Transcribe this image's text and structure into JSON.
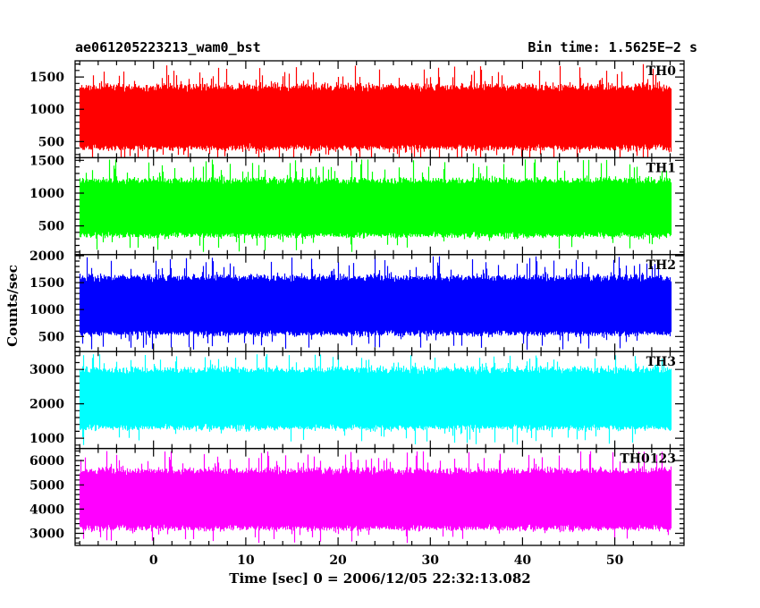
{
  "header": {
    "title": "ae061205223213_wam0_bst",
    "bin_time": "Bin time: 1.5625E−2 s"
  },
  "axes": {
    "xlabel": "Time [sec] 0 = 2006/12/05 22:32:13.082",
    "ylabel": "Counts/sec"
  },
  "chart_data": {
    "type": "line",
    "title": "ae061205223213_wam0_bst",
    "subtitle": "Bin time: 1.5625E−2 s",
    "xlabel": "Time [sec] 0 = 2006/12/05 22:32:13.082",
    "ylabel": "Counts/sec",
    "xlim": [
      -8.5,
      57.5
    ],
    "xdata_range": [
      -8,
      56
    ],
    "xticks_major": [
      0,
      10,
      20,
      30,
      40,
      50
    ],
    "xtick_minor_step": 2,
    "grid": false,
    "legend": "none",
    "panels": [
      {
        "name": "TH0",
        "color": "#ff0000",
        "ylim": [
          250,
          1750
        ],
        "yticks": [
          500,
          1000,
          1500
        ],
        "ytick_minor_step": 100,
        "typical_range": [
          400,
          1350
        ],
        "peak_range": [
          200,
          1700
        ],
        "mean": 880
      },
      {
        "name": "TH1",
        "color": "#00ff00",
        "ylim": [
          60,
          1540
        ],
        "yticks": [
          500,
          1000,
          1500
        ],
        "ytick_minor_step": 100,
        "typical_range": [
          350,
          1200
        ],
        "peak_range": [
          100,
          1520
        ],
        "mean": 750
      },
      {
        "name": "TH2",
        "color": "#0000ff",
        "ylim": [
          220,
          2020
        ],
        "yticks": [
          500,
          1000,
          1500,
          2000
        ],
        "ytick_minor_step": 100,
        "typical_range": [
          550,
          1600
        ],
        "peak_range": [
          250,
          2000
        ],
        "mean": 1050
      },
      {
        "name": "TH3",
        "color": "#00ffff",
        "ylim": [
          700,
          3520
        ],
        "yticks": [
          1000,
          2000,
          3000
        ],
        "ytick_minor_step": 200,
        "typical_range": [
          1300,
          3000
        ],
        "peak_range": [
          800,
          3450
        ],
        "mean": 2100
      },
      {
        "name": "TH0123",
        "color": "#ff00ff",
        "ylim": [
          2500,
          6500
        ],
        "yticks": [
          3000,
          4000,
          5000,
          6000
        ],
        "ytick_minor_step": 200,
        "typical_range": [
          3200,
          5600
        ],
        "peak_range": [
          2600,
          6400
        ],
        "mean": 4400
      }
    ]
  }
}
